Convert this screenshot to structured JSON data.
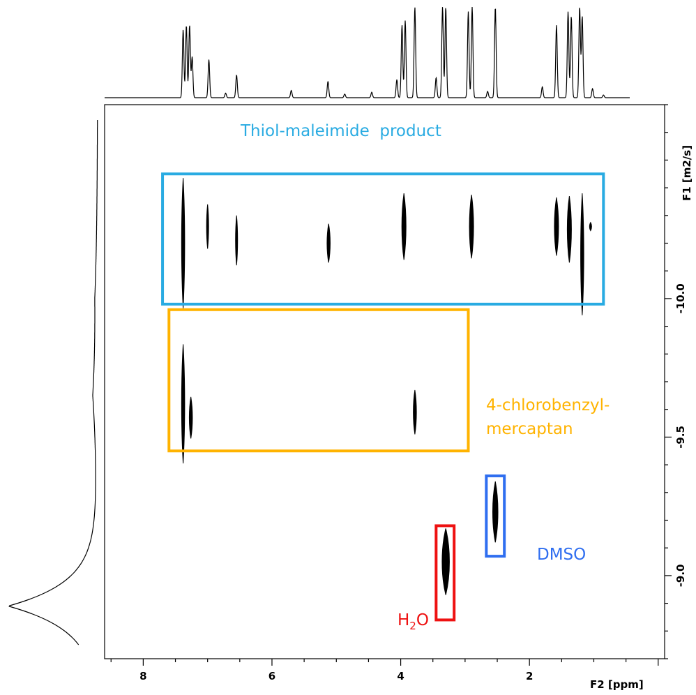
{
  "chart_data": {
    "type": "2d-dosy-nmr",
    "x_axis": {
      "label": "F2 [ppm]",
      "range": [
        8.6,
        -0.1
      ],
      "reversed": true,
      "major_ticks": [
        8,
        6,
        4,
        2
      ],
      "tick_labels": [
        "8",
        "6",
        "4",
        "2"
      ]
    },
    "y_axis": {
      "label": "F1 [m2/s]",
      "position": "right",
      "range": [
        -10.7,
        -8.7
      ],
      "major_ticks": [
        -10.0,
        -9.5,
        -9.0
      ],
      "tick_labels": [
        "-10.0",
        "-9.5",
        "-9.0"
      ]
    },
    "projection_1h": {
      "peaks": [
        {
          "ppm": 7.38,
          "h": 0.75
        },
        {
          "ppm": 7.33,
          "h": 0.8
        },
        {
          "ppm": 7.28,
          "h": 0.8
        },
        {
          "ppm": 7.24,
          "h": 0.45
        },
        {
          "ppm": 6.98,
          "h": 0.42
        },
        {
          "ppm": 6.72,
          "h": 0.05
        },
        {
          "ppm": 6.55,
          "h": 0.25
        },
        {
          "ppm": 5.7,
          "h": 0.08
        },
        {
          "ppm": 5.13,
          "h": 0.18
        },
        {
          "ppm": 4.87,
          "h": 0.04
        },
        {
          "ppm": 4.45,
          "h": 0.06
        },
        {
          "ppm": 4.06,
          "h": 0.2
        },
        {
          "ppm": 3.98,
          "h": 0.8
        },
        {
          "ppm": 3.93,
          "h": 0.85
        },
        {
          "ppm": 3.78,
          "h": 1.0
        },
        {
          "ppm": 3.45,
          "h": 0.22
        },
        {
          "ppm": 3.35,
          "h": 1.0
        },
        {
          "ppm": 3.3,
          "h": 1.0
        },
        {
          "ppm": 2.95,
          "h": 0.95
        },
        {
          "ppm": 2.89,
          "h": 1.0
        },
        {
          "ppm": 2.65,
          "h": 0.07
        },
        {
          "ppm": 2.53,
          "h": 1.0
        },
        {
          "ppm": 1.8,
          "h": 0.12
        },
        {
          "ppm": 1.58,
          "h": 0.8
        },
        {
          "ppm": 1.4,
          "h": 0.95
        },
        {
          "ppm": 1.35,
          "h": 0.9
        },
        {
          "ppm": 1.22,
          "h": 1.0
        },
        {
          "ppm": 1.18,
          "h": 0.9
        },
        {
          "ppm": 1.02,
          "h": 0.1
        },
        {
          "ppm": 0.85,
          "h": 0.03
        }
      ]
    },
    "diffusion_projection": {
      "peaks": [
        {
          "logD": -8.89,
          "h": 1.0
        },
        {
          "logD": -9.65,
          "h": 0.05
        },
        {
          "logD": -10.0,
          "h": 0.02
        }
      ]
    },
    "cross_peaks": [
      {
        "ppm": 7.38,
        "logD": -10.2,
        "span": 0.47,
        "width": 3
      },
      {
        "ppm": 7.0,
        "logD": -10.26,
        "span": 0.16,
        "width": 2
      },
      {
        "ppm": 6.55,
        "logD": -10.21,
        "span": 0.18,
        "width": 2
      },
      {
        "ppm": 5.12,
        "logD": -10.2,
        "span": 0.14,
        "width": 3
      },
      {
        "ppm": 3.95,
        "logD": -10.26,
        "span": 0.24,
        "width": 4
      },
      {
        "ppm": 2.9,
        "logD": -10.26,
        "span": 0.23,
        "width": 4
      },
      {
        "ppm": 1.58,
        "logD": -10.26,
        "span": 0.21,
        "width": 4
      },
      {
        "ppm": 1.38,
        "logD": -10.25,
        "span": 0.24,
        "width": 4
      },
      {
        "ppm": 1.18,
        "logD": -10.16,
        "span": 0.44,
        "width": 3
      },
      {
        "ppm": 1.05,
        "logD": -10.26,
        "span": 0.03,
        "width": 2
      },
      {
        "ppm": 7.38,
        "logD": -9.62,
        "span": 0.43,
        "width": 3
      },
      {
        "ppm": 7.26,
        "logD": -9.57,
        "span": 0.15,
        "width": 3
      },
      {
        "ppm": 3.78,
        "logD": -9.59,
        "span": 0.16,
        "width": 3
      },
      {
        "ppm": 3.3,
        "logD": -9.05,
        "span": 0.24,
        "width": 7
      },
      {
        "ppm": 2.53,
        "logD": -9.23,
        "span": 0.22,
        "width": 5
      }
    ],
    "regions": [
      {
        "label": "Thiol-maleimide  product",
        "color": "#29abe2",
        "ppm": [
          7.7,
          0.85
        ],
        "logD": [
          -10.45,
          -9.98
        ]
      },
      {
        "label": "4-chlorobenzyl-mercaptan",
        "color": "#ffb300",
        "ppm": [
          7.6,
          2.95
        ],
        "logD": [
          -9.96,
          -9.45
        ]
      },
      {
        "label": "DMSO",
        "color": "#2f6ef0",
        "ppm": [
          2.67,
          2.39
        ],
        "logD": [
          -9.36,
          -9.07
        ]
      },
      {
        "label": "H2O",
        "color": "#ee1111",
        "ppm": [
          3.45,
          3.17
        ],
        "logD": [
          -9.18,
          -8.84
        ]
      }
    ]
  },
  "annotations": {
    "thiol": "Thiol-maleimide  product",
    "mercaptan_line1": "4-chlorobenzyl-",
    "mercaptan_line2": "mercaptan",
    "dmso": "DMSO",
    "water_h": "H",
    "water_sub": "2",
    "water_o": "O"
  }
}
